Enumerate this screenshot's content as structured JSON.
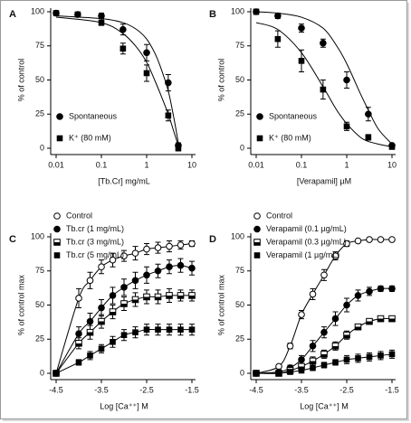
{
  "chart_data": [
    {
      "type": "scatter",
      "label": "A",
      "ylabel": "% of control",
      "xlabel": "[Tb.Cr] mg/mL",
      "xscale": "log",
      "xlim": [
        0.01,
        10
      ],
      "xticks": [
        0.01,
        0.1,
        1,
        10
      ],
      "ylim": [
        0,
        100
      ],
      "yticks": [
        0,
        25,
        50,
        75,
        100
      ],
      "legend": "lower left",
      "x": [
        0.01,
        0.03,
        0.1,
        0.3,
        1,
        3,
        5
      ],
      "series": [
        {
          "name": "Spontaneous",
          "marker": "circle",
          "color": "#000000",
          "values": [
            99,
            98,
            97,
            87,
            70,
            48,
            2
          ],
          "errors": [
            1,
            1,
            2,
            4,
            6,
            6,
            2
          ],
          "fit": {
            "x": [
              0.01,
              0.1,
              0.3,
              0.6,
              1,
              1.5,
              2,
              3,
              4,
              5
            ],
            "values": [
              97,
              95,
              92,
              87,
              80,
              70,
              60,
              42,
              22,
              4
            ]
          }
        },
        {
          "name": "K⁺ (80 mM)",
          "marker": "square",
          "color": "#000000",
          "values": [
            99,
            98,
            92,
            73,
            55,
            24,
            0
          ],
          "errors": [
            1,
            1,
            2,
            4,
            6,
            4,
            2
          ],
          "fit": {
            "x": [
              0.01,
              0.1,
              0.3,
              0.6,
              1,
              1.5,
              2,
              3,
              4,
              5
            ],
            "values": [
              96,
              92,
              84,
              74,
              63,
              50,
              40,
              25,
              12,
              2
            ]
          }
        }
      ]
    },
    {
      "type": "scatter",
      "label": "B",
      "ylabel": "% of control",
      "xlabel": "[Verapamil] µM",
      "xscale": "log",
      "xlim": [
        0.01,
        10
      ],
      "xticks": [
        0.01,
        0.1,
        1,
        10
      ],
      "ylim": [
        0,
        100
      ],
      "yticks": [
        0,
        25,
        50,
        75,
        100
      ],
      "legend": "lower left",
      "x": [
        0.01,
        0.03,
        0.1,
        0.3,
        1,
        3,
        10
      ],
      "series": [
        {
          "name": "Spontaneous",
          "marker": "circle",
          "color": "#000000",
          "values": [
            100,
            97,
            88,
            77,
            50,
            25,
            2
          ],
          "errors": [
            2,
            2,
            3,
            3,
            6,
            5,
            1
          ],
          "fit": {
            "x": [
              0.01,
              0.03,
              0.1,
              0.3,
              0.6,
              1,
              2,
              3,
              5,
              10
            ],
            "values": [
              100,
              99,
              96,
              88,
              75,
              62,
              40,
              28,
              14,
              3
            ]
          }
        },
        {
          "name": "K⁺ (80 mM)",
          "marker": "square",
          "color": "#000000",
          "values": [
            100,
            80,
            64,
            43,
            16,
            8,
            1
          ],
          "errors": [
            2,
            6,
            8,
            7,
            3,
            2,
            1
          ],
          "fit": {
            "x": [
              0.01,
              0.03,
              0.1,
              0.3,
              0.6,
              1,
              2,
              3,
              5,
              10
            ],
            "values": [
              92,
              87,
              70,
              45,
              28,
              18,
              8,
              5,
              3,
              1
            ]
          }
        }
      ]
    },
    {
      "type": "line",
      "label": "C",
      "ylabel": "% of control max",
      "xlabel": "Log [Ca⁺⁺] M",
      "xlim": [
        -4.5,
        -1.5
      ],
      "xticks": [
        -4.5,
        -3.5,
        -2.5,
        -1.5
      ],
      "ylim": [
        0,
        100
      ],
      "yticks": [
        0,
        25,
        50,
        75,
        100
      ],
      "legend": "upper left",
      "x": [
        -4.5,
        -4,
        -3.75,
        -3.5,
        -3.25,
        -3,
        -2.75,
        -2.5,
        -2.25,
        -2,
        -1.75,
        -1.5
      ],
      "series": [
        {
          "name": "Control",
          "marker": "circle-open",
          "color": "#000000",
          "values": [
            0,
            55,
            68,
            78,
            83,
            86,
            88,
            91,
            92,
            93,
            94,
            95
          ],
          "errors": [
            0,
            7,
            6,
            5,
            5,
            4,
            5,
            4,
            4,
            4,
            3,
            2
          ]
        },
        {
          "name": "Tb.cr (1 mg/mL)",
          "marker": "circle",
          "color": "#000000",
          "values": [
            0,
            29,
            38,
            48,
            57,
            63,
            68,
            72,
            75,
            78,
            79,
            77
          ],
          "errors": [
            0,
            5,
            6,
            6,
            6,
            6,
            6,
            6,
            5,
            5,
            5,
            5
          ]
        },
        {
          "name": "Tb.cr (3 mg/mL)",
          "marker": "square-half",
          "color": "#000000",
          "values": [
            0,
            22,
            30,
            38,
            45,
            51,
            54,
            56,
            56,
            57,
            57,
            57
          ],
          "errors": [
            0,
            4,
            5,
            5,
            5,
            5,
            5,
            5,
            5,
            5,
            4,
            4
          ]
        },
        {
          "name": "Tb.cr (5 mg/mL)",
          "marker": "square",
          "color": "#000000",
          "values": [
            0,
            8,
            13,
            18,
            23,
            28,
            30,
            32,
            32,
            32,
            32,
            32
          ],
          "errors": [
            0,
            2,
            3,
            3,
            4,
            4,
            4,
            4,
            4,
            4,
            4,
            4
          ]
        }
      ]
    },
    {
      "type": "line",
      "label": "D",
      "ylabel": "% of control max",
      "xlabel": "Log [Ca⁺⁺] M",
      "xlim": [
        -4.5,
        -1.5
      ],
      "xticks": [
        -4.5,
        -3.5,
        -2.5,
        -1.5
      ],
      "ylim": [
        0,
        100
      ],
      "yticks": [
        0,
        25,
        50,
        75,
        100
      ],
      "legend": "upper left",
      "x": [
        -4.5,
        -4,
        -3.75,
        -3.5,
        -3.25,
        -3,
        -2.75,
        -2.5,
        -2.25,
        -2,
        -1.75,
        -1.5
      ],
      "series": [
        {
          "name": "Control",
          "marker": "circle-open",
          "color": "#000000",
          "values": [
            0,
            5,
            20,
            43,
            58,
            72,
            86,
            95,
            97,
            98,
            98,
            98
          ],
          "errors": [
            0,
            1,
            2,
            3,
            4,
            4,
            3,
            2,
            1,
            1,
            1,
            1
          ]
        },
        {
          "name": "Verapamil (0.1 µg/mL)",
          "marker": "circle",
          "color": "#000000",
          "values": [
            0,
            1,
            4,
            10,
            20,
            30,
            40,
            50,
            57,
            60,
            62,
            62
          ],
          "errors": [
            0,
            1,
            2,
            3,
            4,
            4,
            5,
            5,
            4,
            3,
            2,
            2
          ]
        },
        {
          "name": "Verapamil (0.3 µg/mL)",
          "marker": "square-half",
          "color": "#000000",
          "values": [
            0,
            0,
            2,
            5,
            9,
            14,
            20,
            28,
            34,
            38,
            40,
            40
          ],
          "errors": [
            0,
            1,
            1,
            2,
            3,
            3,
            3,
            3,
            2,
            2,
            2,
            2
          ]
        },
        {
          "name": "Verapamil (1 µg/mL)",
          "marker": "square",
          "color": "#000000",
          "values": [
            0,
            0,
            1,
            2,
            4,
            6,
            8,
            10,
            11,
            12,
            13,
            14
          ],
          "errors": [
            0,
            1,
            1,
            1,
            2,
            2,
            2,
            3,
            3,
            3,
            3,
            3
          ]
        }
      ]
    }
  ]
}
